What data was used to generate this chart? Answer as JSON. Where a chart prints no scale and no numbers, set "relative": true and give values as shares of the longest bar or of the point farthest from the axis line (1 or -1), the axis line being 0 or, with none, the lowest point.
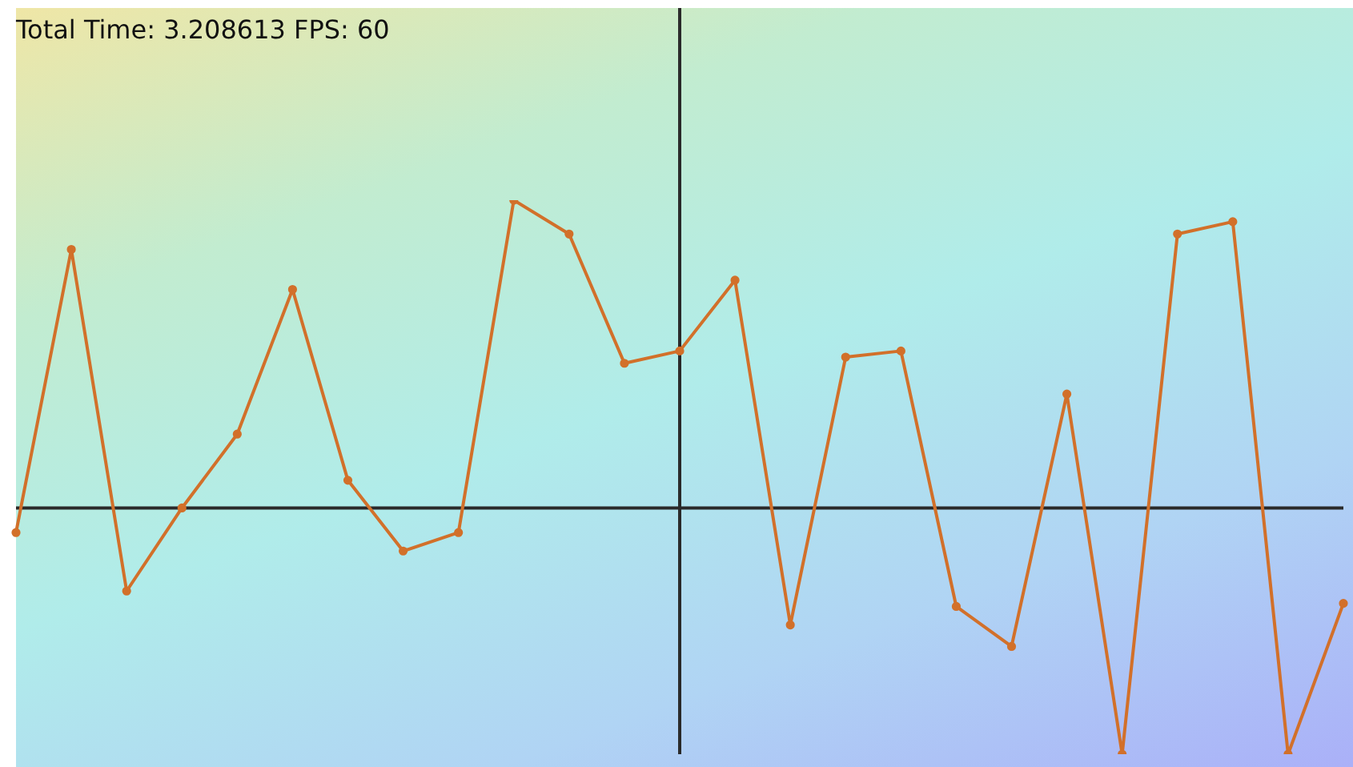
{
  "chart_data": {
    "type": "line",
    "title": "Total Time: 3.208613 FPS: 60",
    "relative": true,
    "legend": false,
    "marker": "circle",
    "line_style": "solid",
    "categories": [
      null,
      null,
      null,
      null,
      null,
      null,
      null,
      null,
      null,
      null,
      null,
      null,
      null,
      null,
      null,
      null,
      null,
      null,
      null,
      null,
      null,
      null,
      null,
      null,
      null
    ],
    "series": [
      {
        "color": "#d2702a",
        "values": [
          -0.08,
          0.84,
          -0.27,
          0,
          0.24,
          0.71,
          0.09,
          -0.14,
          -0.08,
          1,
          0.89,
          0.47,
          0.51,
          0.74,
          -0.38,
          0.49,
          0.51,
          -0.32,
          -0.45,
          0.37,
          -0.8,
          0.89,
          0.93,
          -0.8,
          -0.31
        ]
      }
    ]
  }
}
